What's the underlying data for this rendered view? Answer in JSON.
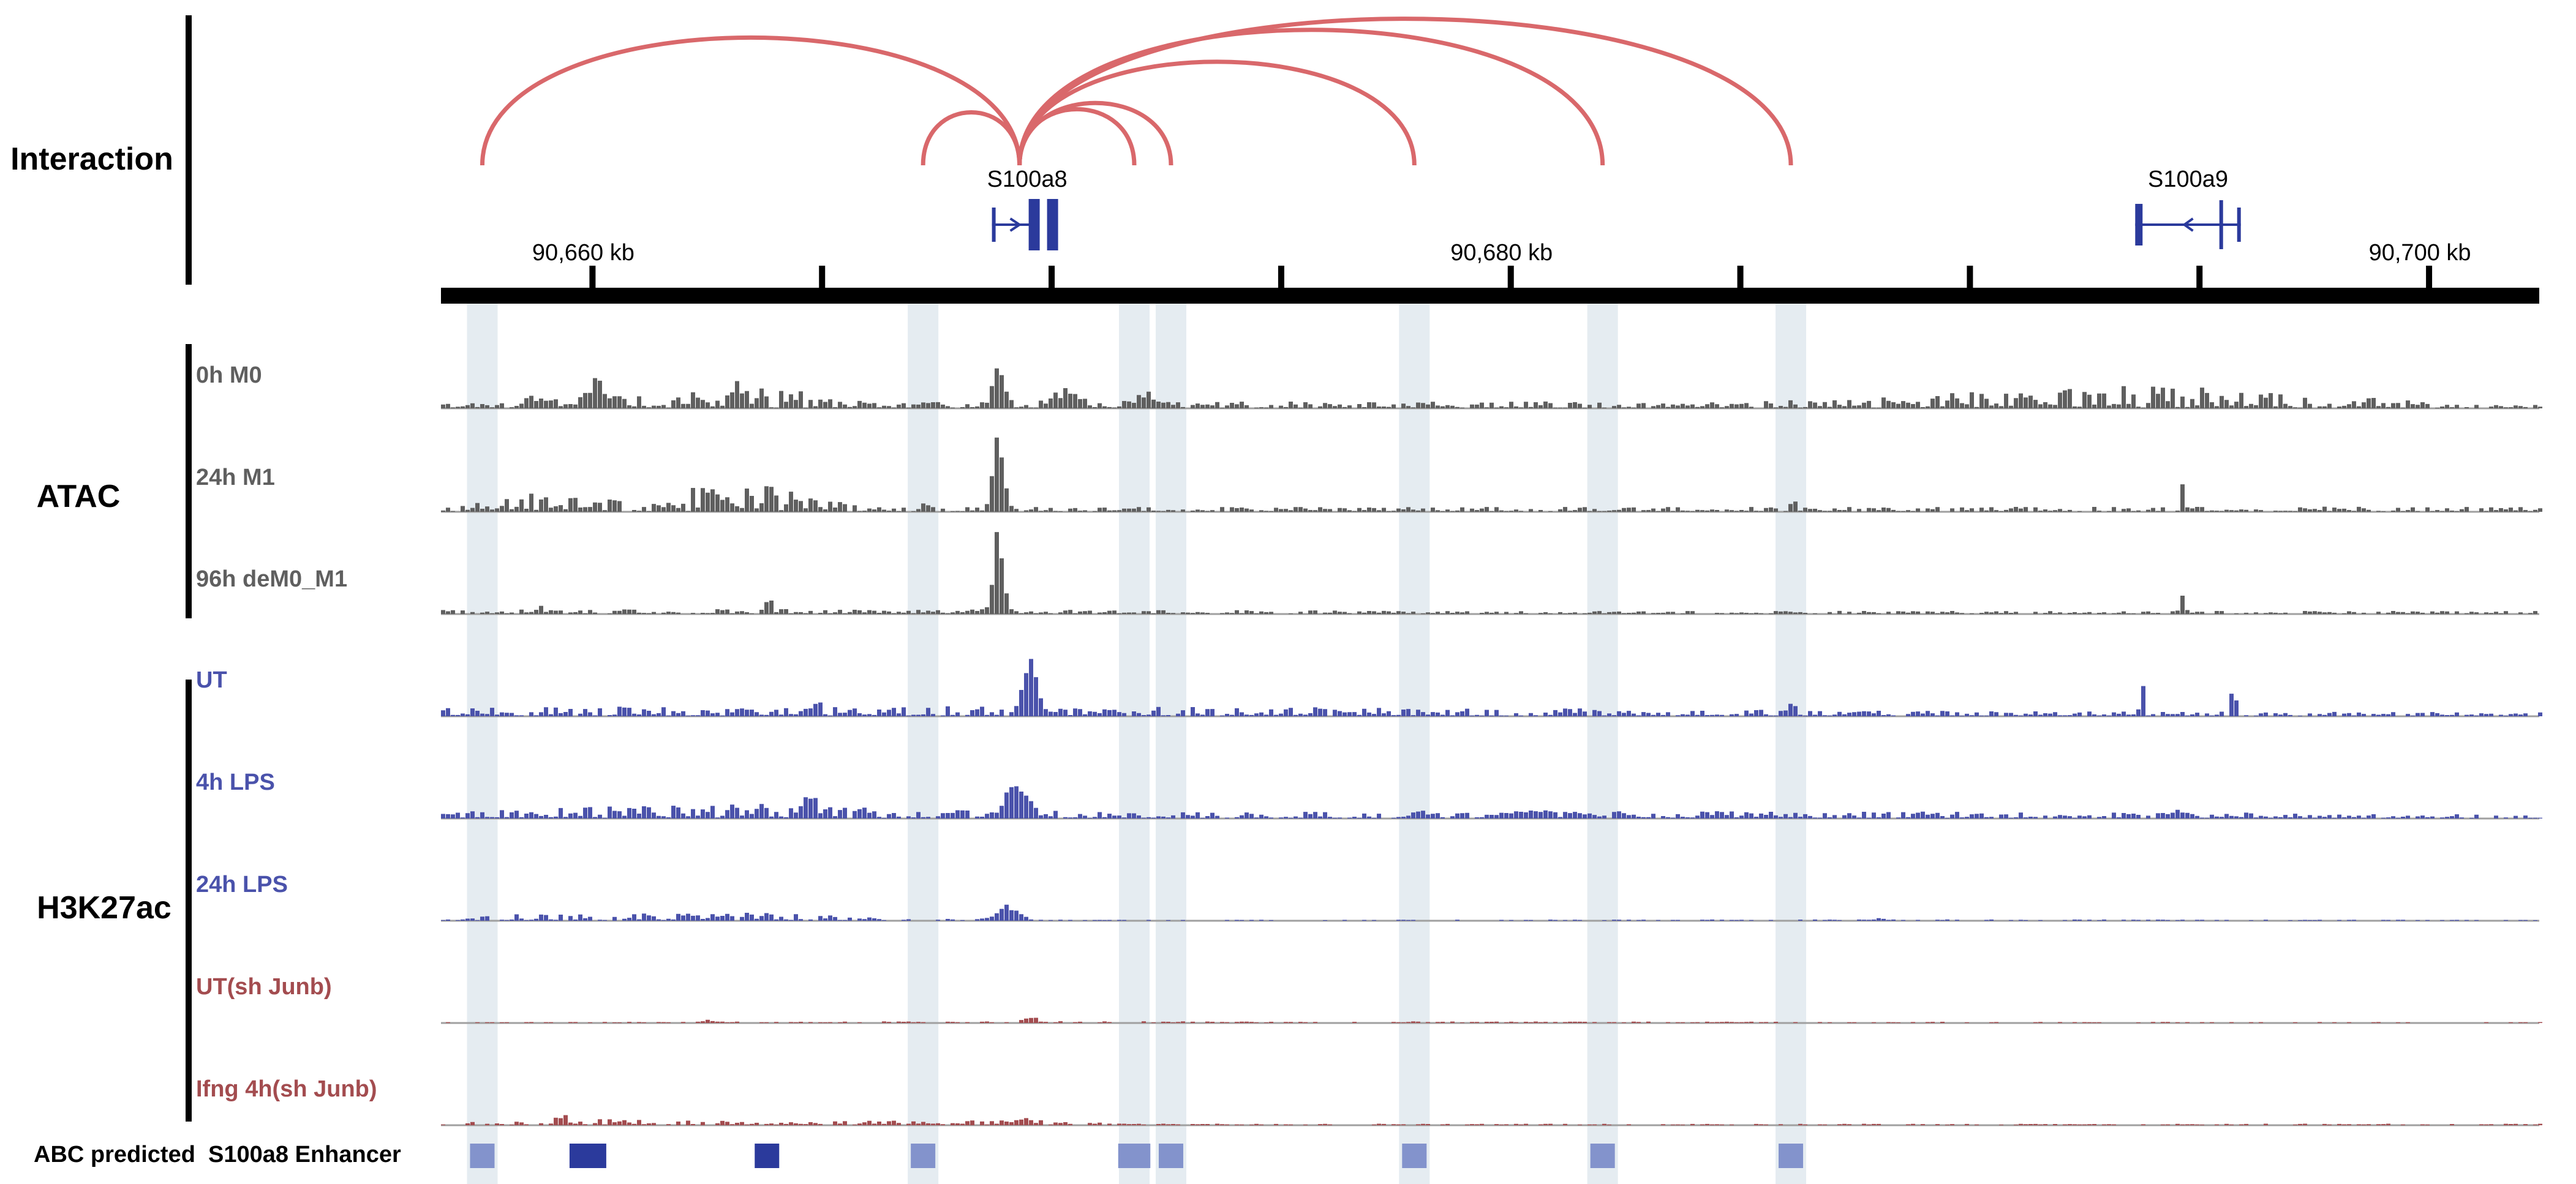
{
  "browser": {
    "locus_chr": "",
    "axis_ticks": [
      {
        "kb": 90660,
        "label": "90,660 kb"
      },
      {
        "kb": 90665,
        "label": ""
      },
      {
        "kb": 90670,
        "label": ""
      },
      {
        "kb": 90675,
        "label": ""
      },
      {
        "kb": 90680,
        "label": "90,680 kb"
      },
      {
        "kb": 90685,
        "label": ""
      },
      {
        "kb": 90690,
        "label": ""
      },
      {
        "kb": 90695,
        "label": ""
      },
      {
        "kb": 90700,
        "label": "90,700 kb"
      }
    ],
    "view_range_kb": [
      90656.7,
      90702.4
    ]
  },
  "groups": {
    "interaction": "Interaction",
    "atac": "ATAC",
    "h3k27ac": "H3K27ac"
  },
  "genes": [
    {
      "name": "S100a8",
      "start_kb": 90668.7,
      "end_kb": 90669.7,
      "strand": "+",
      "color": "#2b3a9c"
    },
    {
      "name": "S100a9",
      "start_kb": 90693.6,
      "end_kb": 90695.9,
      "strand": "-",
      "color": "#2b3a9c"
    }
  ],
  "interactions": {
    "anchor_kb": 90669.3,
    "color": "#d9686b",
    "targets_kb": [
      90657.6,
      90667.2,
      90671.8,
      90672.6,
      90677.9,
      90682.0,
      90686.1
    ]
  },
  "highlights_kb": [
    90657.6,
    90667.2,
    90671.8,
    90672.6,
    90677.9,
    90682.0,
    90686.1
  ],
  "tracks": [
    {
      "label": "0h M0",
      "group": "atac",
      "color": "#5f5f5f",
      "baseline": [
        [
          90657.0,
          0.1
        ],
        [
          90659.5,
          0.2
        ],
        [
          90660.2,
          0.25
        ],
        [
          90663.5,
          0.35
        ],
        [
          90666.0,
          0.1
        ],
        [
          90678.0,
          0.1
        ],
        [
          90685.0,
          0.1
        ],
        [
          90693.0,
          0.35
        ],
        [
          90695.5,
          0.3
        ],
        [
          90701.0,
          0.05
        ]
      ],
      "peaks": [
        [
          90668.8,
          1.0,
          0.35
        ],
        [
          90670.3,
          0.3,
          0.8
        ],
        [
          90672.0,
          0.25,
          0.6
        ],
        [
          90660.0,
          0.3,
          0.6
        ],
        [
          90658.6,
          0.1,
          0.6
        ],
        [
          90663.0,
          0.15,
          0.4
        ]
      ]
    },
    {
      "label": "24h M1",
      "group": "atac",
      "color": "#5f5f5f",
      "baseline": [
        [
          90657.0,
          0.05
        ],
        [
          90658.9,
          0.2
        ],
        [
          90660.6,
          0.12
        ],
        [
          90662.0,
          0.25
        ],
        [
          90663.5,
          0.3
        ],
        [
          90666.0,
          0.05
        ],
        [
          90680.0,
          0.05
        ],
        [
          90701.0,
          0.05
        ]
      ],
      "peaks": [
        [
          90668.8,
          1.0,
          0.35
        ],
        [
          90694.6,
          0.3,
          0.15
        ],
        [
          90667.2,
          0.12,
          0.2
        ],
        [
          90686.1,
          0.1,
          0.2
        ]
      ]
    },
    {
      "label": "96h deM0_M1",
      "group": "atac",
      "color": "#5f5f5f",
      "baseline": [
        [
          90657.0,
          0.04
        ],
        [
          90663.0,
          0.05
        ],
        [
          90680.0,
          0.03
        ],
        [
          90701.0,
          0.03
        ]
      ],
      "peaks": [
        [
          90668.8,
          1.0,
          0.35
        ],
        [
          90663.8,
          0.25,
          0.15
        ],
        [
          90694.6,
          0.22,
          0.15
        ],
        [
          90658.8,
          0.05,
          0.5
        ]
      ]
    },
    {
      "label": "UT",
      "group": "h3k27ac",
      "color": "#4a52ab",
      "baseline": [
        [
          90657.0,
          0.08
        ],
        [
          90662.0,
          0.1
        ],
        [
          90667.0,
          0.1
        ],
        [
          90680.0,
          0.08
        ],
        [
          90690.0,
          0.05
        ],
        [
          90701.0,
          0.04
        ]
      ],
      "peaks": [
        [
          90669.5,
          0.55,
          0.5
        ],
        [
          90693.7,
          0.55,
          0.12
        ],
        [
          90695.7,
          1.0,
          0.1
        ],
        [
          90686.1,
          0.15,
          0.2
        ],
        [
          90664.8,
          0.12,
          0.3
        ]
      ]
    },
    {
      "label": "4h LPS",
      "group": "h3k27ac",
      "color": "#4a52ab",
      "baseline": [
        [
          90657.0,
          0.1
        ],
        [
          90660.0,
          0.2
        ],
        [
          90664.0,
          0.22
        ],
        [
          90666.5,
          0.15
        ],
        [
          90672.0,
          0.1
        ],
        [
          90680.0,
          0.12
        ],
        [
          90690.0,
          0.1
        ],
        [
          90701.0,
          0.06
        ]
      ],
      "peaks": [
        [
          90669.2,
          0.55,
          0.8
        ],
        [
          90664.7,
          0.25,
          0.4
        ],
        [
          90694.5,
          0.15,
          0.3
        ],
        [
          90696.0,
          0.1,
          0.2
        ]
      ]
    },
    {
      "label": "24h LPS",
      "group": "h3k27ac",
      "color": "#4a52ab",
      "baseline": [
        [
          90657.0,
          0.03
        ],
        [
          90658.0,
          0.15
        ],
        [
          90664.0,
          0.18
        ],
        [
          90666.5,
          0.05
        ],
        [
          90672.0,
          0.02
        ],
        [
          90690.0,
          0.03
        ],
        [
          90701.0,
          0.02
        ]
      ],
      "peaks": [
        [
          90669.0,
          0.4,
          0.7
        ],
        [
          90688.0,
          0.05,
          0.3
        ]
      ]
    },
    {
      "label": "UT(sh Junb)",
      "group": "h3k27ac",
      "color": "#a34c4f",
      "baseline": [
        [
          90657.0,
          0.03
        ],
        [
          90669.0,
          0.06
        ],
        [
          90701.0,
          0.03
        ]
      ],
      "peaks": [
        [
          90669.5,
          0.22,
          0.4
        ],
        [
          90662.5,
          0.1,
          0.3
        ]
      ]
    },
    {
      "label": "Ifng 4h(sh Junb)",
      "group": "h3k27ac",
      "color": "#a34c4f",
      "baseline": [
        [
          90657.0,
          0.05
        ],
        [
          90660.0,
          0.2
        ],
        [
          90664.0,
          0.12
        ],
        [
          90669.0,
          0.18
        ],
        [
          90672.0,
          0.05
        ],
        [
          90701.0,
          0.05
        ]
      ],
      "peaks": [
        [
          90659.3,
          0.3,
          0.4
        ],
        [
          90669.3,
          0.25,
          0.6
        ],
        [
          90657.3,
          0.12,
          0.2
        ]
      ]
    }
  ],
  "abc": {
    "label": "ABC predicted  S100a8 Enhancer",
    "boxes": [
      {
        "kb": 90657.6,
        "width_kb": 0.5,
        "color": "#8393cc"
      },
      {
        "kb": 90659.9,
        "width_kb": 0.8,
        "color": "#2b3a9c"
      },
      {
        "kb": 90663.8,
        "width_kb": 0.5,
        "color": "#2b3a9c"
      },
      {
        "kb": 90667.2,
        "width_kb": 0.5,
        "color": "#8393cc"
      },
      {
        "kb": 90671.8,
        "width_kb": 0.7,
        "color": "#8393cc"
      },
      {
        "kb": 90672.6,
        "width_kb": 0.5,
        "color": "#8393cc"
      },
      {
        "kb": 90677.9,
        "width_kb": 0.5,
        "color": "#8393cc"
      },
      {
        "kb": 90682.0,
        "width_kb": 0.5,
        "color": "#8393cc"
      },
      {
        "kb": 90686.1,
        "width_kb": 0.5,
        "color": "#8393cc"
      }
    ]
  }
}
